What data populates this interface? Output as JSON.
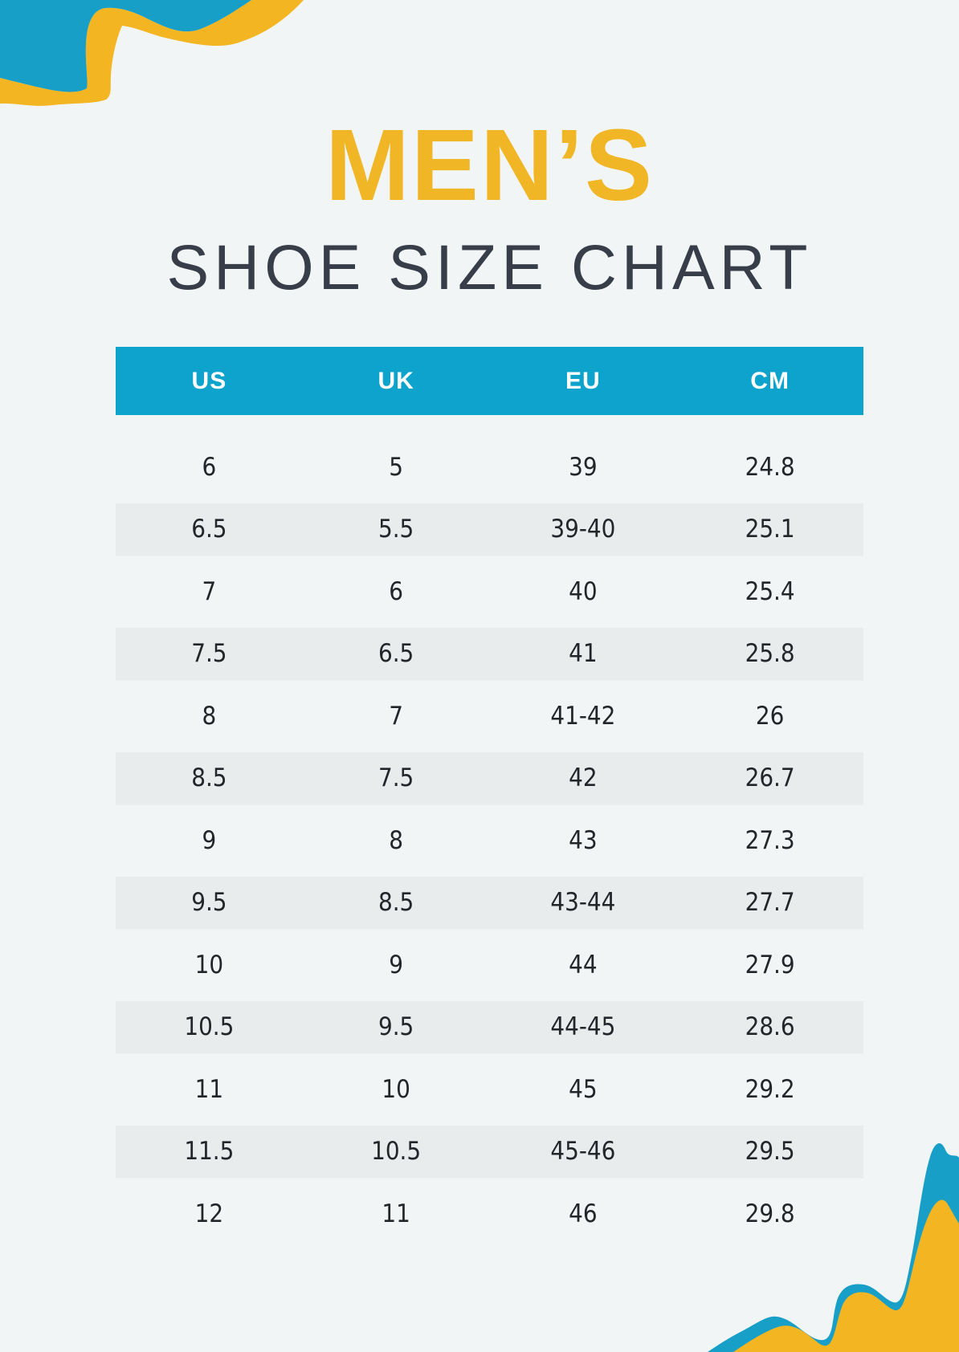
{
  "page": {
    "title": "MEN’S",
    "subtitle": "SHOE SIZE CHART"
  },
  "table": {
    "columns": [
      "US",
      "UK",
      "EU",
      "CM"
    ],
    "rows": [
      [
        "6",
        "5",
        "39",
        "24.8"
      ],
      [
        "6.5",
        "5.5",
        "39-40",
        "25.1"
      ],
      [
        "7",
        "6",
        "40",
        "25.4"
      ],
      [
        "7.5",
        "6.5",
        "41",
        "25.8"
      ],
      [
        "8",
        "7",
        "41-42",
        "26"
      ],
      [
        "8.5",
        "7.5",
        "42",
        "26.7"
      ],
      [
        "9",
        "8",
        "43",
        "27.3"
      ],
      [
        "9.5",
        "8.5",
        "43-44",
        "27.7"
      ],
      [
        "10",
        "9",
        "44",
        "27.9"
      ],
      [
        "10.5",
        "9.5",
        "44-45",
        "28.6"
      ],
      [
        "11",
        "10",
        "45",
        "29.2"
      ],
      [
        "11.5",
        "10.5",
        "45-46",
        "29.5"
      ],
      [
        "12",
        "11",
        "46",
        "29.8"
      ]
    ]
  },
  "colors": {
    "background": "#F1F5F6",
    "accent_blue": "#0DA3CC",
    "blob_blue": "#179FC7",
    "blob_yellow": "#F3B521",
    "title_yellow": "#F1B625",
    "subtitle_dark": "#373E49",
    "stripe_gray": "#E9ECED",
    "header_text": "#FFFFFF",
    "cell_text": "#22262B"
  }
}
